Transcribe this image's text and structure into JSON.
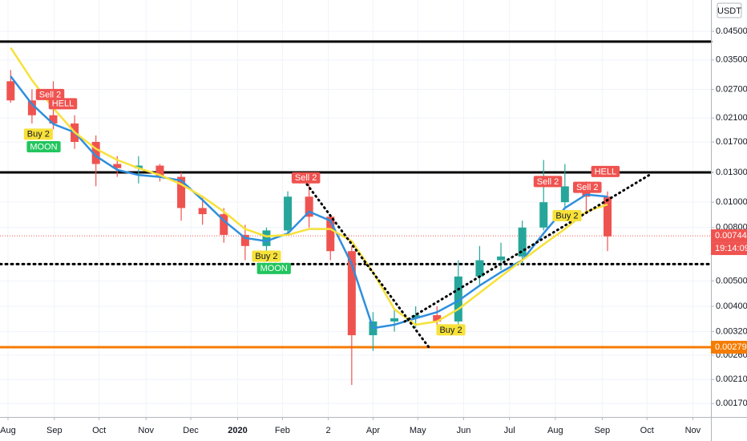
{
  "chart_data": {
    "type": "candlestick",
    "log_scale": true,
    "grid": true,
    "currency": "USDT",
    "countdown": "19:14:09",
    "xlim": [
      0,
      66.7
    ],
    "ylim": [
      0.00151,
      0.0593
    ],
    "xticks": [
      {
        "value": 0.75,
        "label": "Aug"
      },
      {
        "value": 5.1,
        "label": "Sep"
      },
      {
        "value": 9.3,
        "label": "Oct"
      },
      {
        "value": 13.7,
        "label": "Nov"
      },
      {
        "value": 17.9,
        "label": "Dec"
      },
      {
        "value": 22.3,
        "label": "2020"
      },
      {
        "value": 26.5,
        "label": "Feb"
      },
      {
        "value": 30.8,
        "label": "2"
      },
      {
        "value": 35,
        "label": "Apr"
      },
      {
        "value": 39.2,
        "label": "May"
      },
      {
        "value": 43.5,
        "label": "Jun"
      },
      {
        "value": 47.8,
        "label": "Jul"
      },
      {
        "value": 52.1,
        "label": "Aug"
      },
      {
        "value": 56.5,
        "label": "Sep"
      },
      {
        "value": 60.7,
        "label": "Oct"
      },
      {
        "value": 65,
        "label": "Nov"
      }
    ],
    "yticks": [
      {
        "value": 0.045,
        "label": "0.04500"
      },
      {
        "value": 0.035,
        "label": "0.03500"
      },
      {
        "value": 0.027,
        "label": "0.02700"
      },
      {
        "value": 0.021,
        "label": "0.02100"
      },
      {
        "value": 0.017,
        "label": "0.01700"
      },
      {
        "value": 0.013,
        "label": "0.01300"
      },
      {
        "value": 0.01,
        "label": "0.01000"
      },
      {
        "value": 0.008,
        "label": "0.00800"
      },
      {
        "value": 0.005,
        "label": "0.00500"
      },
      {
        "value": 0.004,
        "label": "0.00400"
      },
      {
        "value": 0.0032,
        "label": "0.00320"
      },
      {
        "value": 0.0026,
        "label": "0.00260"
      },
      {
        "value": 0.0021,
        "label": "0.00210"
      },
      {
        "value": 0.0017,
        "label": "0.00170"
      }
    ],
    "up_color": "#26a69a",
    "down_color": "#ef5350",
    "x": [
      1,
      3,
      5,
      7,
      9,
      11,
      13,
      15,
      17,
      19,
      21,
      23,
      25,
      27,
      29,
      31,
      33,
      35,
      37,
      39,
      41,
      43,
      45,
      47,
      49,
      51,
      53,
      55,
      57
    ],
    "open": [
      0.029,
      0.0245,
      0.0215,
      0.02,
      0.017,
      0.014,
      0.0135,
      0.0138,
      0.0125,
      0.0095,
      0.009,
      0.0075,
      0.0068,
      0.0078,
      0.0105,
      0.0088,
      0.0065,
      0.0031,
      0.0035,
      0.0036,
      0.0037,
      0.0035,
      0.0052,
      0.006,
      0.0062,
      0.008,
      0.01,
      0.0115,
      0.0105
    ],
    "high": [
      0.032,
      0.027,
      0.029,
      0.0215,
      0.018,
      0.015,
      0.015,
      0.014,
      0.013,
      0.0105,
      0.0095,
      0.0082,
      0.008,
      0.011,
      0.0118,
      0.009,
      0.0068,
      0.0038,
      0.0039,
      0.004,
      0.004,
      0.006,
      0.0068,
      0.007,
      0.0085,
      0.0145,
      0.014,
      0.012,
      0.011
    ],
    "low": [
      0.024,
      0.02,
      0.019,
      0.016,
      0.0115,
      0.0125,
      0.0118,
      0.012,
      0.0085,
      0.0082,
      0.007,
      0.006,
      0.0064,
      0.0075,
      0.008,
      0.006,
      0.002,
      0.0027,
      0.0032,
      0.0033,
      0.0032,
      0.0034,
      0.0048,
      0.0055,
      0.0058,
      0.0078,
      0.0095,
      0.009,
      0.0065
    ],
    "close": [
      0.0245,
      0.0215,
      0.02,
      0.017,
      0.014,
      0.0135,
      0.0138,
      0.0125,
      0.0095,
      0.009,
      0.0075,
      0.0068,
      0.0078,
      0.0105,
      0.0088,
      0.0065,
      0.0031,
      0.0035,
      0.0036,
      0.0037,
      0.0035,
      0.0052,
      0.006,
      0.0062,
      0.008,
      0.01,
      0.0115,
      0.0105,
      0.0074
    ],
    "series": [
      {
        "color": "#2f8fdd",
        "values": [
          0.0303,
          0.0237,
          0.0199,
          0.0185,
          0.015,
          0.0133,
          0.0127,
          0.0125,
          0.0121,
          0.0102,
          0.0085,
          0.0073,
          0.0071,
          0.0076,
          0.0092,
          0.0085,
          0.0058,
          0.0033,
          0.0034,
          0.0036,
          0.0038,
          0.0042,
          0.0048,
          0.0054,
          0.006,
          0.0076,
          0.0095,
          0.0107,
          0.0105
        ]
      },
      {
        "color": "#f7e13a",
        "values": [
          0.039,
          0.0293,
          0.0229,
          0.0185,
          0.016,
          0.0145,
          0.0135,
          0.0127,
          0.0117,
          0.0105,
          0.0092,
          0.0079,
          0.0074,
          0.0075,
          0.0079,
          0.0079,
          0.0071,
          0.0054,
          0.0039,
          0.0034,
          0.0035,
          0.0039,
          0.0045,
          0.0052,
          0.006,
          0.0069,
          0.0079,
          0.0092,
          0.0098
        ]
      }
    ],
    "levels": [
      {
        "value": 0.0411,
        "color": "#000000",
        "dash": false
      },
      {
        "value": 0.013,
        "color": "#000000",
        "dash": false
      },
      {
        "value": 0.0058,
        "color": "#000000",
        "dash": true
      },
      {
        "value": 0.00279,
        "color": "#f57c00",
        "dash": false
      }
    ],
    "trendlines": [
      {
        "x": [
          28.8,
          40.2
        ],
        "values": [
          0.0117,
          0.0028
        ]
      },
      {
        "x": [
          37.97,
          61.05
        ],
        "values": [
          0.0035,
          0.0128
        ]
      }
    ],
    "annotations": [
      {
        "text": "Sell 2",
        "color": "#ef5350",
        "x": 4.7,
        "value": 0.0258
      },
      {
        "text": "HELL",
        "color": "#ef5350",
        "x": 5.9,
        "value": 0.0238
      },
      {
        "text": "Buy 2",
        "color": "#f7e13a",
        "x": 3.6,
        "value": 0.0182
      },
      {
        "text": "MOON",
        "color": "#22c55e",
        "x": 4.1,
        "value": 0.0163
      },
      {
        "text": "Sell 2",
        "color": "#ef5350",
        "x": 28.7,
        "value": 0.0124
      },
      {
        "text": "Buy 2",
        "color": "#f7e13a",
        "x": 25.0,
        "value": 0.00622
      },
      {
        "text": "MOON",
        "color": "#22c55e",
        "x": 25.7,
        "value": 0.00558
      },
      {
        "text": "Buy 2",
        "color": "#f7e13a",
        "x": 42.3,
        "value": 0.00325
      },
      {
        "text": "Sell 2",
        "color": "#ef5350",
        "x": 51.4,
        "value": 0.012
      },
      {
        "text": "Buy 2",
        "color": "#f7e13a",
        "x": 53.2,
        "value": 0.00888
      },
      {
        "text": "Sell 2",
        "color": "#ef5350",
        "x": 55.1,
        "value": 0.0114
      },
      {
        "text": "HELL",
        "color": "#ef5350",
        "x": 56.8,
        "value": 0.0131
      }
    ],
    "last_price": 0.00744,
    "last_price_color": "#ef5350",
    "support_price": 0.00279,
    "support_color": "#f57c00"
  }
}
